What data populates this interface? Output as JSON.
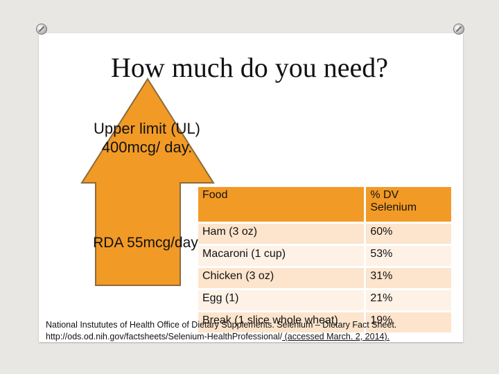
{
  "slide": {
    "title": "How much do you need?",
    "upper_limit": "Upper limit (UL) 400mcg/ day.",
    "rda": "RDA 55mcg/day",
    "colors": {
      "arrow": "#f29a26",
      "header": "#f29a26",
      "row": "#fde4cc",
      "row_alt": "#fef1e6"
    }
  },
  "table": {
    "headers": [
      "Food",
      "% DV Selenium"
    ],
    "rows": [
      [
        "Ham (3 oz)",
        "60%"
      ],
      [
        "Macaroni (1 cup)",
        "53%"
      ],
      [
        "Chicken (3 oz)",
        "31%"
      ],
      [
        "Egg (1)",
        "21%"
      ],
      [
        "Break (1 slice whole wheat)",
        "19%"
      ]
    ]
  },
  "citation": {
    "line1": "National Instututes of Health Office of Dietary Supplements. Selenium – Dietary Fact Sheet.",
    "line2_url": "http://ods.od.nih.gov/factsheets/Selenium-HealthProfessional/",
    "line2_rest": " (accessed March. 2, 2014)."
  }
}
